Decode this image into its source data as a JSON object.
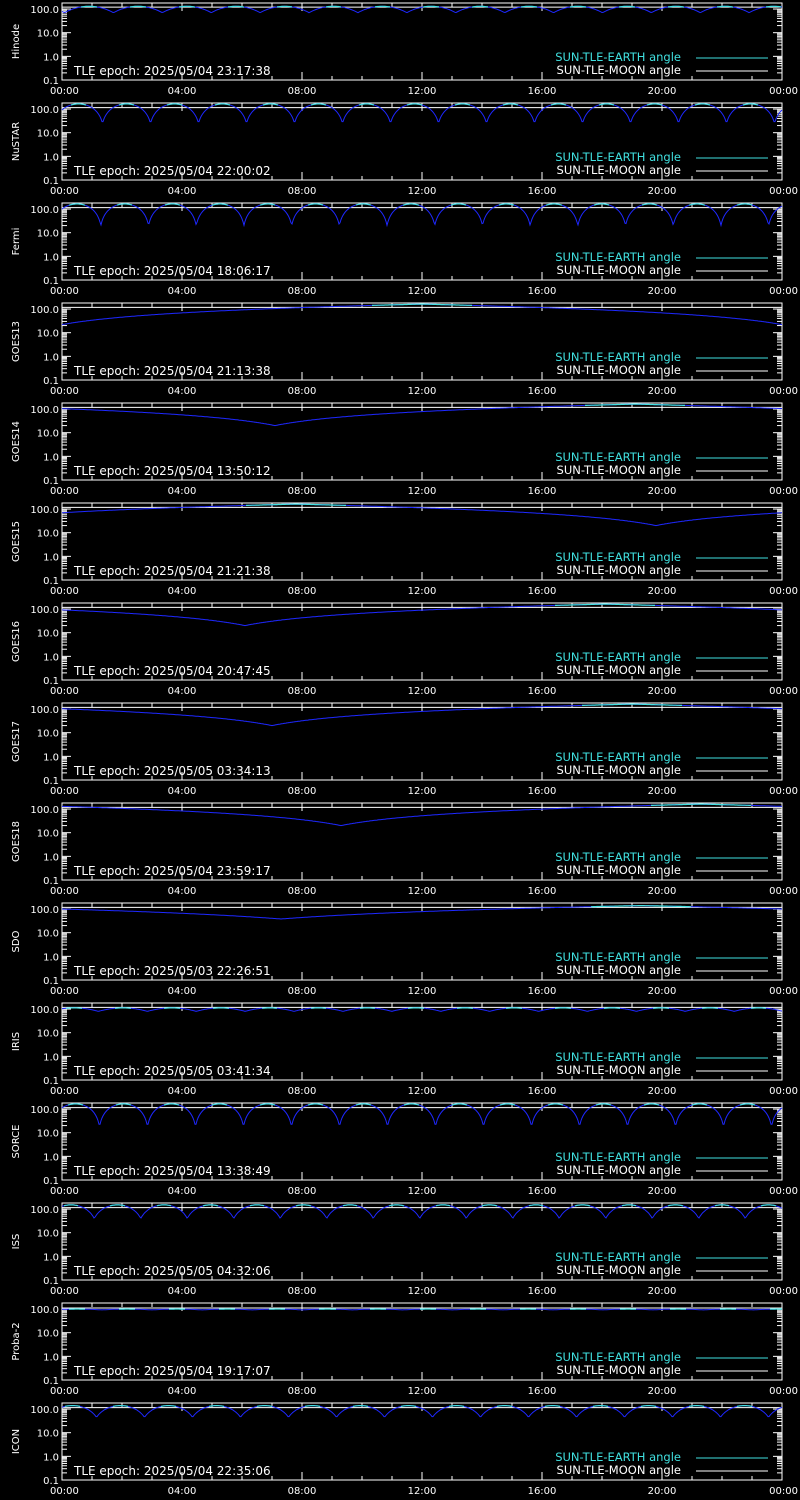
{
  "page": {
    "background": "#000000",
    "foreground": "#ffffff"
  },
  "x_tick_labels": [
    "00:00",
    "04:00",
    "08:00",
    "12:00",
    "16:00",
    "20:00",
    "00:00"
  ],
  "y_tick_labels": [
    "100.0",
    "10.0",
    "1.0",
    "0.1"
  ],
  "legend": {
    "earth_label": "SUN-TLE-EARTH angle",
    "moon_label": "SUN-TLE-MOON angle",
    "earth_color": "#40e0e0",
    "moon_color": "#ffffff",
    "curve_low_color": "#1e28ff"
  },
  "chart_data": [
    {
      "type": "line",
      "satellite": "Hinode",
      "tle_epoch": "TLE epoch: 2025/05/04 23:17:38",
      "xlim": [
        0,
        24
      ],
      "ylim": [
        0.1,
        180
      ],
      "yscale": "log",
      "legend_position": "bottom-right",
      "series": [
        {
          "name": "SUN-TLE-EARTH angle",
          "model": "orbital",
          "max": 130,
          "min": 70,
          "period_h": 1.63,
          "phase_h": 0.9
        },
        {
          "name": "SUN-TLE-MOON angle",
          "model": "constant",
          "value": 120
        }
      ]
    },
    {
      "type": "line",
      "satellite": "NuSTAR",
      "tle_epoch": "TLE epoch: 2025/05/04 22:00:02",
      "xlim": [
        0,
        24
      ],
      "ylim": [
        0.1,
        180
      ],
      "yscale": "log",
      "legend_position": "bottom-right",
      "series": [
        {
          "name": "SUN-TLE-EARTH angle",
          "model": "orbital",
          "max": 165,
          "min": 25,
          "period_h": 1.6,
          "phase_h": 0.55
        },
        {
          "name": "SUN-TLE-MOON angle",
          "model": "constant",
          "value": 115
        }
      ]
    },
    {
      "type": "line",
      "satellite": "Fermi",
      "tle_epoch": "TLE epoch: 2025/05/04 18:06:17",
      "xlim": [
        0,
        24
      ],
      "ylim": [
        0.1,
        180
      ],
      "yscale": "log",
      "legend_position": "bottom-right",
      "series": [
        {
          "name": "SUN-TLE-EARTH angle",
          "model": "orbital",
          "max": 165,
          "min": 20,
          "period_h": 1.59,
          "phase_h": 0.5
        },
        {
          "name": "SUN-TLE-MOON angle",
          "model": "constant",
          "value": 115
        }
      ]
    },
    {
      "type": "line",
      "satellite": "GOES13",
      "tle_epoch": "TLE epoch: 2025/05/04 21:13:38",
      "xlim": [
        0,
        24
      ],
      "ylim": [
        0.1,
        180
      ],
      "yscale": "log",
      "legend_position": "bottom-right",
      "series": [
        {
          "name": "SUN-TLE-EARTH angle",
          "model": "geo",
          "max": 162,
          "min": 22,
          "period_h": 24,
          "min_at_h": 0
        },
        {
          "name": "SUN-TLE-MOON angle",
          "model": "constant",
          "value": 118
        }
      ]
    },
    {
      "type": "line",
      "satellite": "GOES14",
      "tle_epoch": "TLE epoch: 2025/05/04 13:50:12",
      "xlim": [
        0,
        24
      ],
      "ylim": [
        0.1,
        180
      ],
      "yscale": "log",
      "legend_position": "bottom-right",
      "series": [
        {
          "name": "SUN-TLE-EARTH angle",
          "model": "geo",
          "max": 162,
          "min": 20,
          "period_h": 24,
          "min_at_h": 7.1
        },
        {
          "name": "SUN-TLE-MOON angle",
          "model": "constant",
          "value": 118
        }
      ]
    },
    {
      "type": "line",
      "satellite": "GOES15",
      "tle_epoch": "TLE epoch: 2025/05/04 21:21:38",
      "xlim": [
        0,
        24
      ],
      "ylim": [
        0.1,
        180
      ],
      "yscale": "log",
      "legend_position": "bottom-right",
      "series": [
        {
          "name": "SUN-TLE-EARTH angle",
          "model": "geo",
          "max": 162,
          "min": 20,
          "period_h": 24,
          "min_at_h": 19.8
        },
        {
          "name": "SUN-TLE-MOON angle",
          "model": "constant",
          "value": 118
        }
      ]
    },
    {
      "type": "line",
      "satellite": "GOES16",
      "tle_epoch": "TLE epoch: 2025/05/04 20:47:45",
      "xlim": [
        0,
        24
      ],
      "ylim": [
        0.1,
        180
      ],
      "yscale": "log",
      "legend_position": "bottom-right",
      "series": [
        {
          "name": "SUN-TLE-EARTH angle",
          "model": "geo",
          "max": 162,
          "min": 20,
          "period_h": 24,
          "min_at_h": 6.1
        },
        {
          "name": "SUN-TLE-MOON angle",
          "model": "constant",
          "value": 118
        }
      ]
    },
    {
      "type": "line",
      "satellite": "GOES17",
      "tle_epoch": "TLE epoch: 2025/05/05 03:34:13",
      "xlim": [
        0,
        24
      ],
      "ylim": [
        0.1,
        180
      ],
      "yscale": "log",
      "legend_position": "bottom-right",
      "series": [
        {
          "name": "SUN-TLE-EARTH angle",
          "model": "geo",
          "max": 162,
          "min": 20,
          "period_h": 24,
          "min_at_h": 7.0
        },
        {
          "name": "SUN-TLE-MOON angle",
          "model": "constant",
          "value": 118
        }
      ]
    },
    {
      "type": "line",
      "satellite": "GOES18",
      "tle_epoch": "TLE epoch: 2025/05/04 23:59:17",
      "xlim": [
        0,
        24
      ],
      "ylim": [
        0.1,
        180
      ],
      "yscale": "log",
      "legend_position": "bottom-right",
      "series": [
        {
          "name": "SUN-TLE-EARTH angle",
          "model": "geo",
          "max": 162,
          "min": 20,
          "period_h": 24,
          "min_at_h": 9.3
        },
        {
          "name": "SUN-TLE-MOON angle",
          "model": "constant",
          "value": 118
        }
      ]
    },
    {
      "type": "line",
      "satellite": "SDO",
      "tle_epoch": "TLE epoch: 2025/05/03 22:26:51",
      "xlim": [
        0,
        24
      ],
      "ylim": [
        0.1,
        180
      ],
      "yscale": "log",
      "legend_position": "bottom-right",
      "series": [
        {
          "name": "SUN-TLE-EARTH angle",
          "model": "geo",
          "max": 140,
          "min": 38,
          "period_h": 24,
          "min_at_h": 7.3
        },
        {
          "name": "SUN-TLE-MOON angle",
          "model": "constant",
          "value": 118
        }
      ]
    },
    {
      "type": "line",
      "satellite": "IRIS",
      "tle_epoch": "TLE epoch: 2025/05/05 03:41:34",
      "xlim": [
        0,
        24
      ],
      "ylim": [
        0.1,
        180
      ],
      "yscale": "log",
      "legend_position": "bottom-right",
      "series": [
        {
          "name": "SUN-TLE-EARTH angle",
          "model": "orbital",
          "max": 112,
          "min": 80,
          "period_h": 1.63,
          "phase_h": 0.4
        },
        {
          "name": "SUN-TLE-MOON angle",
          "model": "constant",
          "value": 118
        }
      ]
    },
    {
      "type": "line",
      "satellite": "SORCE",
      "tle_epoch": "TLE epoch: 2025/05/04 13:38:49",
      "xlim": [
        0,
        24
      ],
      "ylim": [
        0.1,
        180
      ],
      "yscale": "log",
      "legend_position": "bottom-right",
      "series": [
        {
          "name": "SUN-TLE-EARTH angle",
          "model": "orbital",
          "max": 165,
          "min": 18,
          "period_h": 1.6,
          "phase_h": 0.45
        },
        {
          "name": "SUN-TLE-MOON angle",
          "model": "constant",
          "value": 115
        }
      ]
    },
    {
      "type": "line",
      "satellite": "ISS",
      "tle_epoch": "TLE epoch: 2025/05/05 04:32:06",
      "xlim": [
        0,
        24
      ],
      "ylim": [
        0.1,
        180
      ],
      "yscale": "log",
      "legend_position": "bottom-right",
      "series": [
        {
          "name": "SUN-TLE-EARTH angle",
          "model": "orbital",
          "max": 150,
          "min": 40,
          "period_h": 1.55,
          "phase_h": 0.3
        },
        {
          "name": "SUN-TLE-MOON angle",
          "model": "constant",
          "value": 115
        }
      ]
    },
    {
      "type": "line",
      "satellite": "Proba-2",
      "tle_epoch": "TLE epoch: 2025/05/04 19:17:07",
      "xlim": [
        0,
        24
      ],
      "ylim": [
        0.1,
        180
      ],
      "yscale": "log",
      "legend_position": "bottom-right",
      "series": [
        {
          "name": "SUN-TLE-EARTH angle",
          "model": "orbital",
          "max": 100,
          "min": 92,
          "period_h": 1.67,
          "phase_h": 0.5
        },
        {
          "name": "SUN-TLE-MOON angle",
          "model": "constant",
          "value": 110
        }
      ]
    },
    {
      "type": "line",
      "satellite": "ICON",
      "tle_epoch": "TLE epoch: 2025/05/04 22:35:06",
      "xlim": [
        0,
        24
      ],
      "ylim": [
        0.1,
        180
      ],
      "yscale": "log",
      "legend_position": "bottom-right",
      "series": [
        {
          "name": "SUN-TLE-EARTH angle",
          "model": "orbital",
          "max": 140,
          "min": 45,
          "period_h": 1.6,
          "phase_h": 0.35
        },
        {
          "name": "SUN-TLE-MOON angle",
          "model": "constant",
          "value": 115
        }
      ]
    }
  ]
}
